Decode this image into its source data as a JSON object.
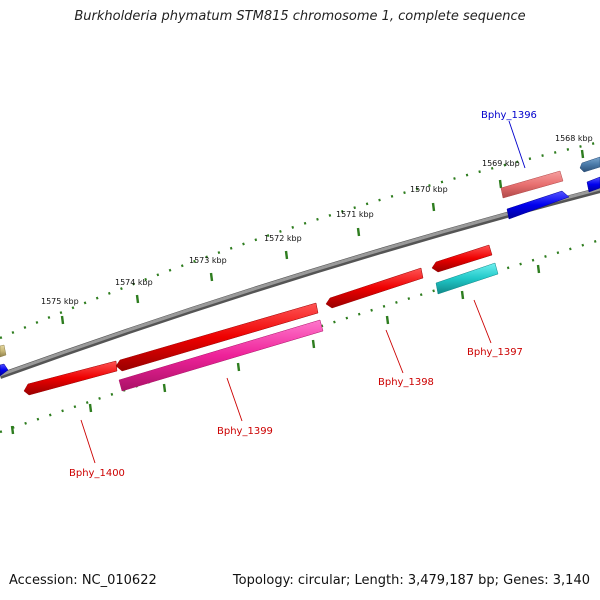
{
  "title": "Burkholderia phymatum STM815 chromosome 1, complete sequence",
  "footer": {
    "accession": "Accession: NC_010622",
    "topology": "Topology: circular; Length: 3,479,187 bp; Genes: 3,140"
  },
  "ticks": [
    "1568 kbp",
    "1569 kbp",
    "1570 kbp",
    "1571 kbp",
    "1572 kbp",
    "1573 kbp",
    "1574 kbp",
    "1575 kbp"
  ],
  "genes": [
    {
      "label": "Bphy_1396",
      "color": "#0000cc"
    },
    {
      "label": "Bphy_1397",
      "color": "#cc0000"
    },
    {
      "label": "Bphy_1398",
      "color": "#cc0000"
    },
    {
      "label": "Bphy_1399",
      "color": "#cc0000"
    },
    {
      "label": "Bphy_1400",
      "color": "#cc0000"
    }
  ],
  "colors": {
    "backbone": "#808080",
    "tick": "#2e7d1f",
    "cds_red": "#ee0000",
    "cds_pink": "#ee3399",
    "cds_cyan": "#20c8c8",
    "cds_salmon": "#e87070",
    "cds_blue": "#0000ee",
    "cds_steel": "#4a7aa8",
    "cds_khaki": "#c8b878"
  }
}
